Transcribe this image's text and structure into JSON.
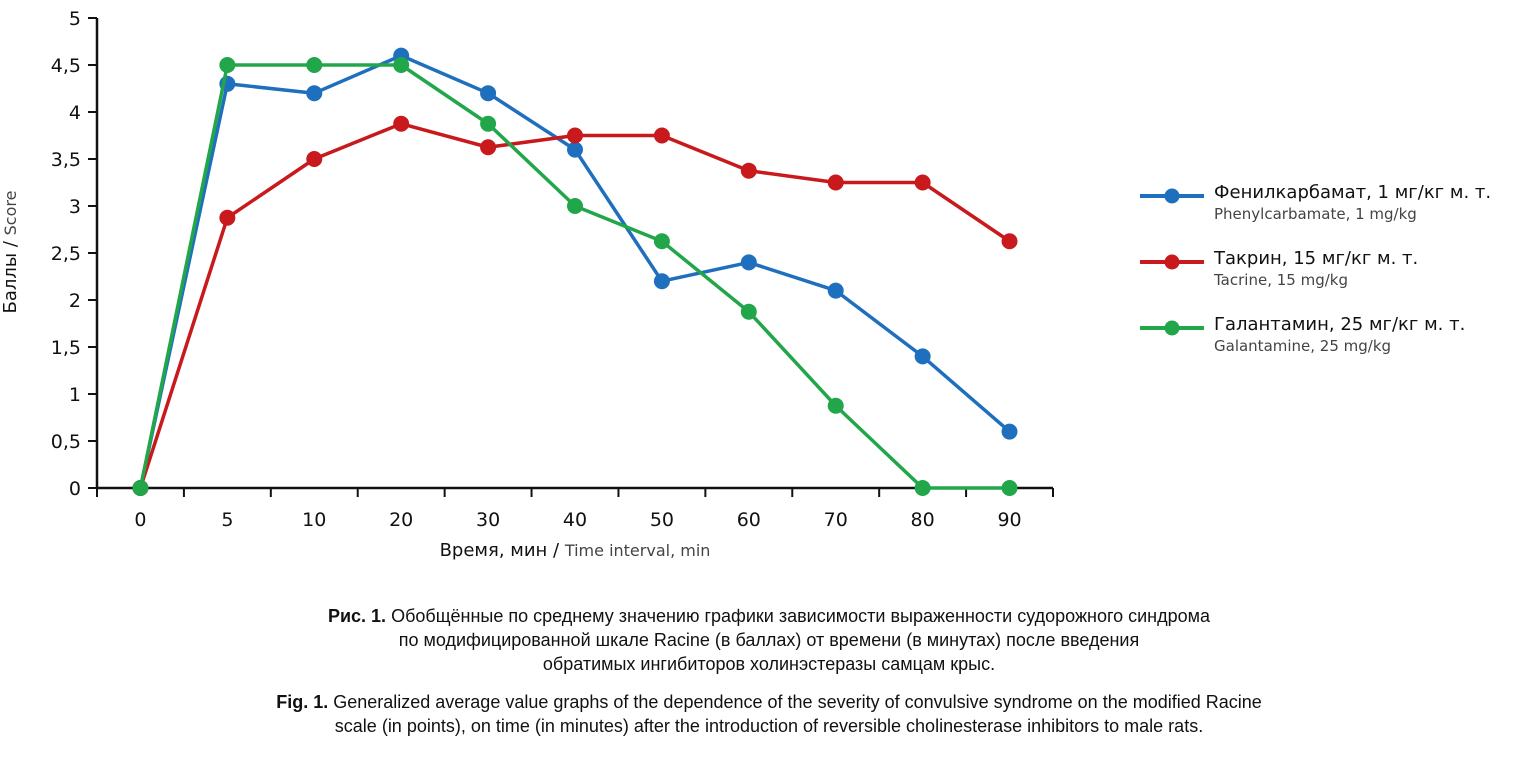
{
  "chart_data": {
    "type": "line",
    "title": "",
    "xlabel_ru": "Время, мин",
    "xlabel_sep": " / ",
    "xlabel_en": "Time interval, min",
    "ylabel_ru": "Баллы",
    "ylabel_sep": " / ",
    "ylabel_en": "Score",
    "categories": [
      "0",
      "5",
      "10",
      "20",
      "30",
      "40",
      "50",
      "60",
      "70",
      "80",
      "90"
    ],
    "yticks": [
      "0",
      "0,5",
      "1",
      "1,5",
      "2",
      "2,5",
      "3",
      "3,5",
      "4",
      "4,5",
      "5"
    ],
    "ylim": [
      0,
      5
    ],
    "grid": false,
    "legend_position": "right",
    "series": [
      {
        "name": "Фенилкарбамат, 1 мг/кг м. т.",
        "name_en": "Phenylcarbamate, 1 mg/kg",
        "color": "#1f6fbf",
        "values": [
          0,
          4.3,
          4.2,
          4.6,
          4.2,
          3.6,
          2.2,
          2.4,
          2.1,
          1.4,
          0.6
        ]
      },
      {
        "name": "Такрин, 15 мг/кг м. т.",
        "name_en": "Tacrine, 15 mg/kg",
        "color": "#c8191c",
        "values": [
          0,
          2.875,
          3.5,
          3.875,
          3.625,
          3.75,
          3.75,
          3.375,
          3.25,
          3.25,
          2.625
        ]
      },
      {
        "name": "Галантамин, 25 мг/кг м. т.",
        "name_en": "Galantamine, 25 mg/kg",
        "color": "#22a64a",
        "values": [
          0,
          4.5,
          4.5,
          4.5,
          3.875,
          3.0,
          2.625,
          1.875,
          0.875,
          0,
          0
        ]
      }
    ]
  },
  "caption": {
    "ru_label": "Рис. 1.",
    "ru_text_line1": " Обобщённые по среднему значению графики зависимости выраженности судорожного синдрома",
    "ru_text_line2": "по модифицированной шкале Racine (в баллах) от времени (в минутах) после введения",
    "ru_text_line3": "обратимых ингибиторов холинэстеразы самцам крыс.",
    "en_label": "Fig. 1.",
    "en_text_line1": " Generalized average value graphs of the dependence of the severity of convulsive syndrome on the modified Racine",
    "en_text_line2": "scale (in points), on time (in minutes) after the introduction of reversible cholinesterase inhibitors to male rats."
  }
}
